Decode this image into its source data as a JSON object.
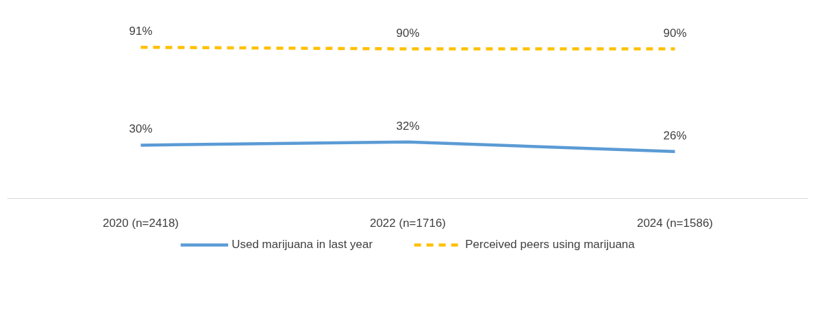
{
  "chart_data": {
    "type": "line",
    "categories": [
      "2020 (n=2418)",
      "2022 (n=1716)",
      "2024 (n=1586)"
    ],
    "series": [
      {
        "name": "Used marijuana in last year",
        "color": "#5b9bd5",
        "values": [
          30,
          32,
          26
        ],
        "value_labels": [
          "30%",
          "32%",
          "26%"
        ],
        "line_style": "solid"
      },
      {
        "name": "Perceived peers using marijuana",
        "color": "#ffc000",
        "values": [
          91,
          90,
          90
        ],
        "value_labels": [
          "91%",
          "90%",
          "90%"
        ],
        "line_style": "dashed"
      }
    ],
    "tick_labels": "x",
    "legend": "bottom",
    "marker": "none"
  }
}
